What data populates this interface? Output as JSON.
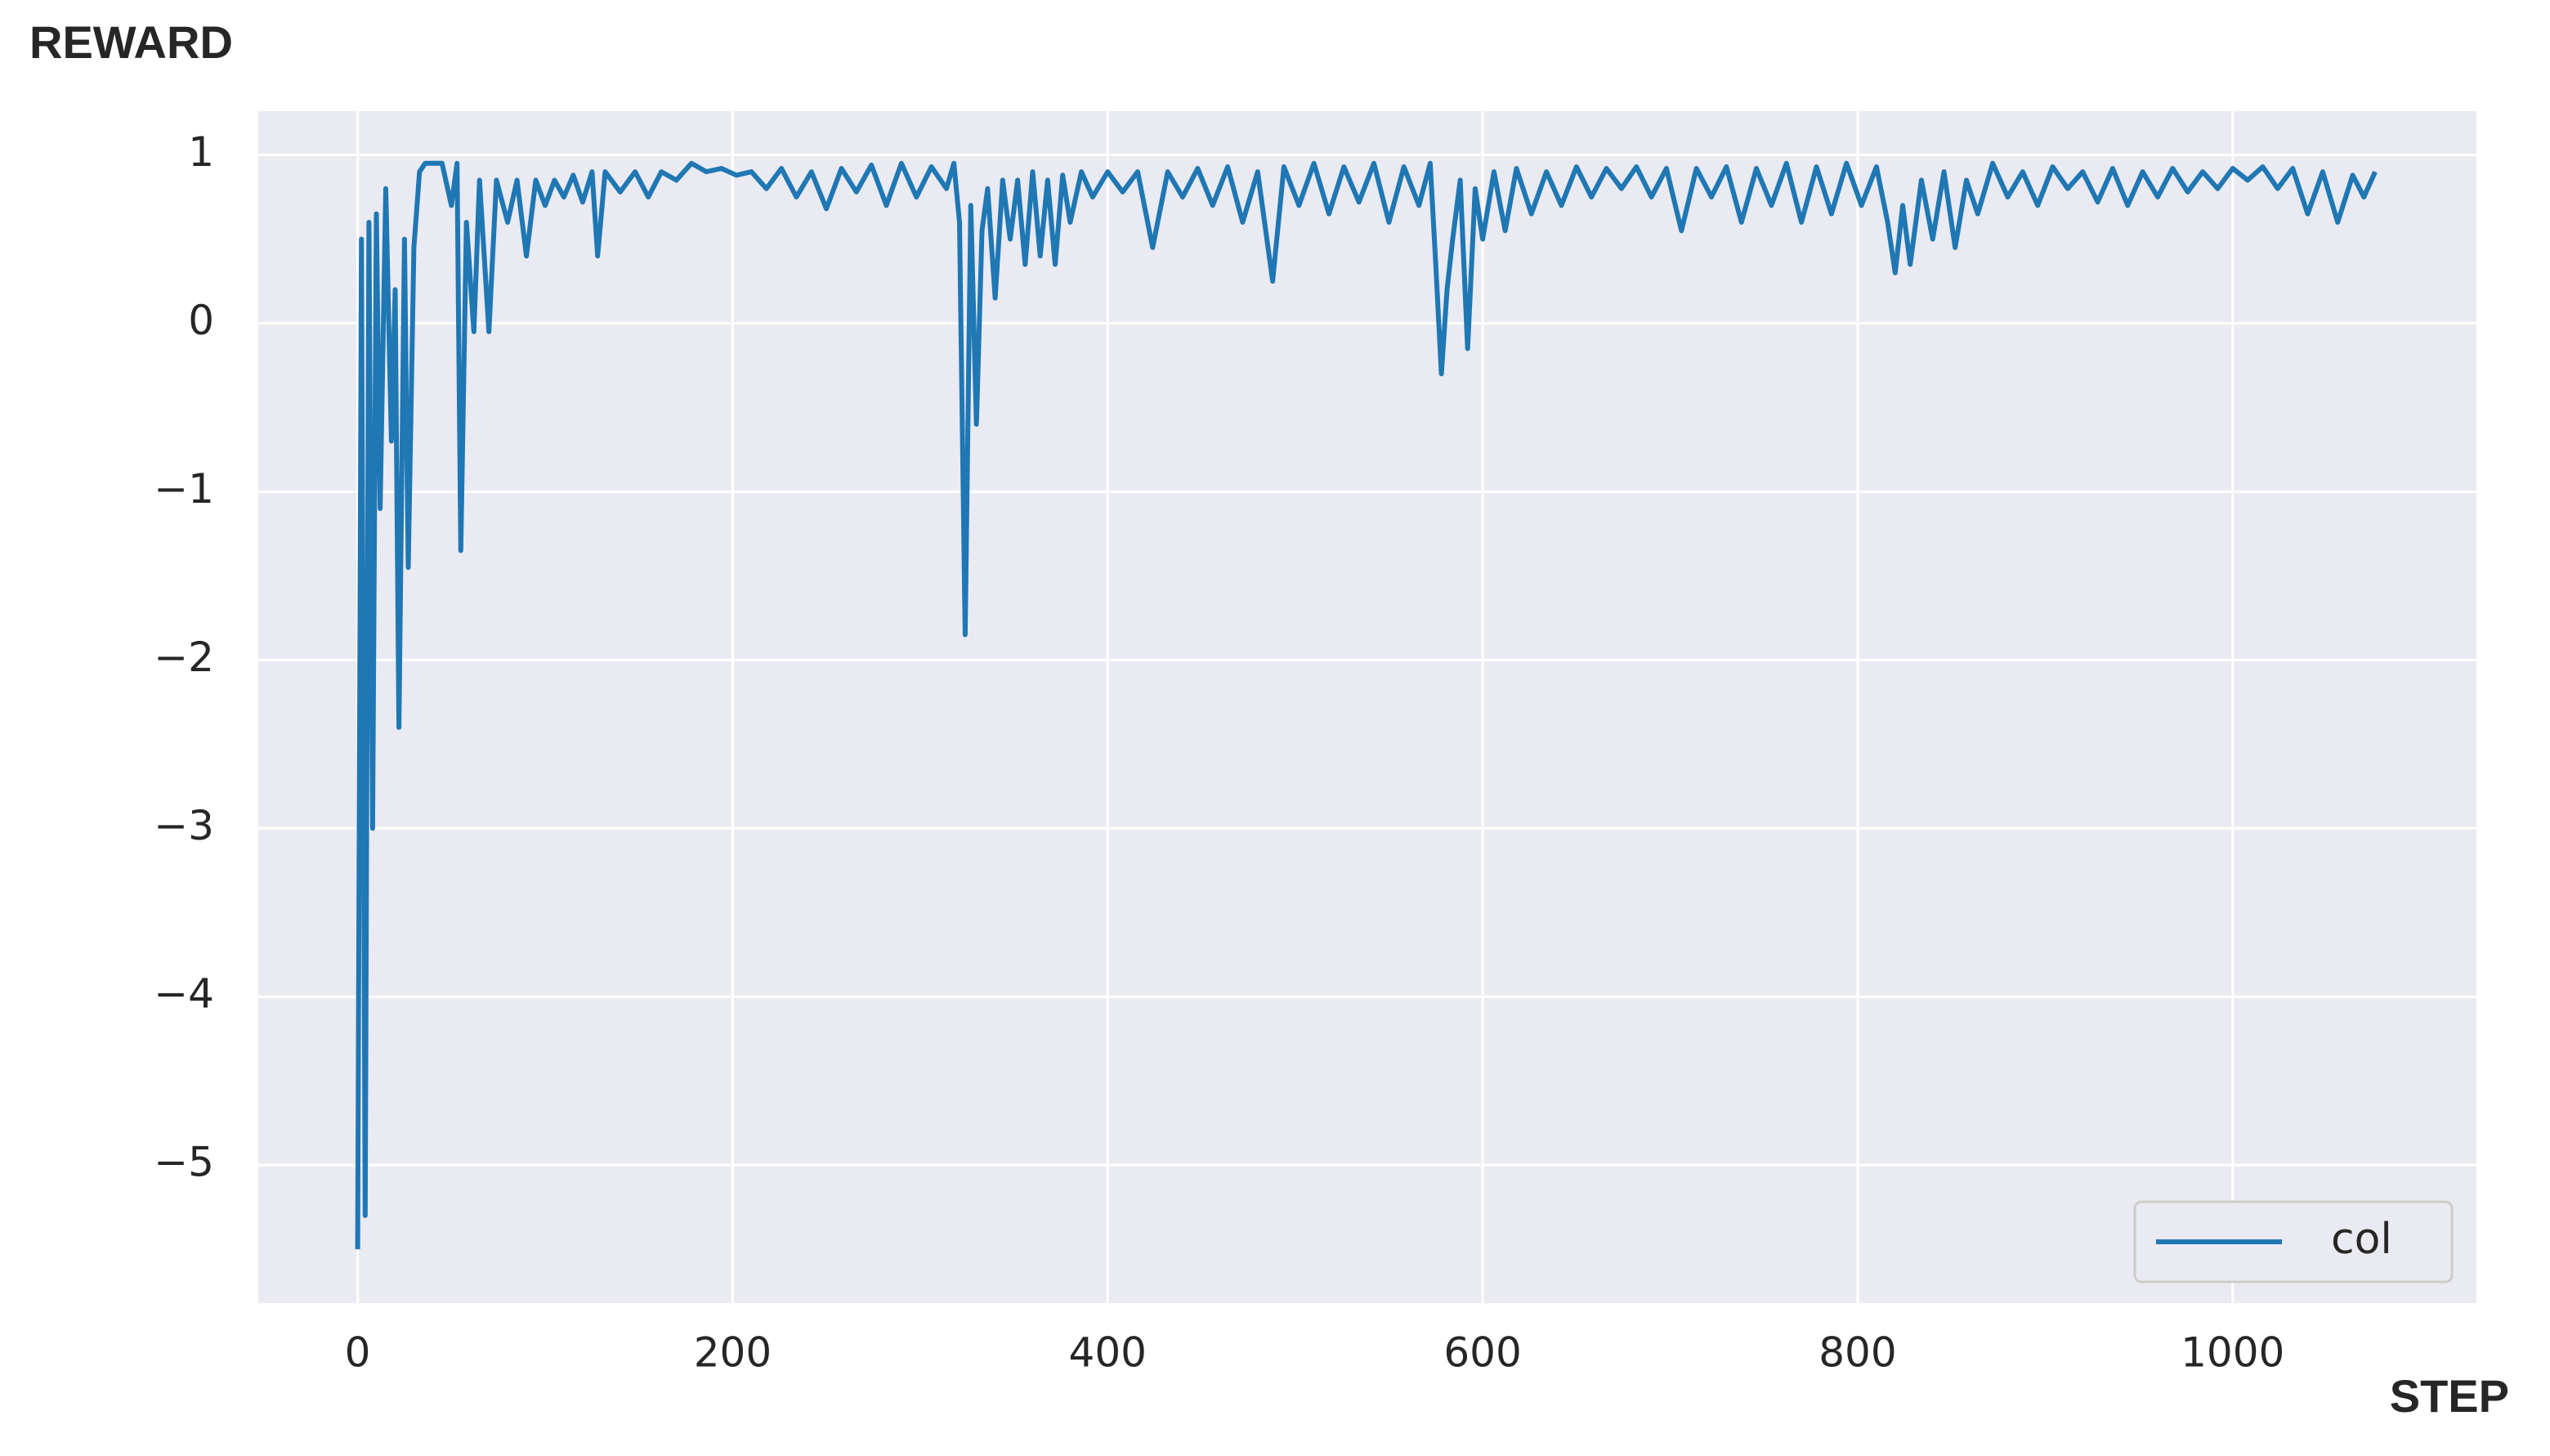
{
  "chart_data": {
    "type": "line",
    "y_label": "REWARD",
    "x_label": "STEP",
    "x": [
      0,
      2,
      4,
      6,
      8,
      10,
      12,
      15,
      18,
      20,
      22,
      25,
      27,
      30,
      33,
      36,
      40,
      45,
      50,
      53,
      55,
      58,
      62,
      65,
      70,
      74,
      80,
      85,
      90,
      95,
      100,
      105,
      110,
      115,
      120,
      125,
      128,
      132,
      140,
      148,
      155,
      162,
      170,
      178,
      186,
      194,
      202,
      210,
      218,
      226,
      234,
      242,
      250,
      258,
      266,
      274,
      282,
      290,
      298,
      306,
      314,
      318,
      321,
      324,
      327,
      330,
      333,
      336,
      340,
      344,
      348,
      352,
      356,
      360,
      364,
      368,
      372,
      376,
      380,
      386,
      392,
      400,
      408,
      416,
      424,
      432,
      440,
      448,
      456,
      464,
      472,
      480,
      488,
      494,
      502,
      510,
      518,
      526,
      534,
      542,
      550,
      558,
      566,
      572,
      575,
      578,
      581,
      584,
      588,
      592,
      596,
      600,
      606,
      612,
      618,
      626,
      634,
      642,
      650,
      658,
      666,
      674,
      682,
      690,
      698,
      706,
      714,
      722,
      730,
      738,
      746,
      754,
      762,
      770,
      778,
      786,
      794,
      802,
      810,
      816,
      820,
      824,
      828,
      834,
      840,
      846,
      852,
      858,
      864,
      872,
      880,
      888,
      896,
      904,
      912,
      920,
      928,
      936,
      944,
      952,
      960,
      968,
      976,
      984,
      992,
      1000,
      1008,
      1016,
      1024,
      1032,
      1040,
      1048,
      1056,
      1064,
      1070,
      1076
    ],
    "series": [
      {
        "name": "col",
        "color": "#1f77b4",
        "values": [
          -5.5,
          0.5,
          -5.3,
          0.6,
          -3.0,
          0.65,
          -1.1,
          0.8,
          -0.7,
          0.2,
          -2.4,
          0.5,
          -1.45,
          0.45,
          0.9,
          0.95,
          0.95,
          0.95,
          0.7,
          0.95,
          -1.35,
          0.6,
          -0.05,
          0.85,
          -0.05,
          0.85,
          0.6,
          0.85,
          0.4,
          0.85,
          0.7,
          0.85,
          0.75,
          0.88,
          0.72,
          0.9,
          0.4,
          0.9,
          0.78,
          0.9,
          0.75,
          0.9,
          0.85,
          0.95,
          0.9,
          0.92,
          0.88,
          0.9,
          0.8,
          0.92,
          0.75,
          0.9,
          0.68,
          0.92,
          0.78,
          0.94,
          0.7,
          0.95,
          0.75,
          0.93,
          0.8,
          0.95,
          0.6,
          -1.85,
          0.7,
          -0.6,
          0.55,
          0.8,
          0.15,
          0.85,
          0.5,
          0.85,
          0.35,
          0.9,
          0.4,
          0.85,
          0.35,
          0.88,
          0.6,
          0.9,
          0.75,
          0.9,
          0.78,
          0.9,
          0.45,
          0.9,
          0.75,
          0.92,
          0.7,
          0.93,
          0.6,
          0.9,
          0.25,
          0.93,
          0.7,
          0.95,
          0.65,
          0.93,
          0.72,
          0.95,
          0.6,
          0.93,
          0.7,
          0.95,
          0.35,
          -0.3,
          0.2,
          0.5,
          0.85,
          -0.15,
          0.8,
          0.5,
          0.9,
          0.55,
          0.92,
          0.65,
          0.9,
          0.7,
          0.93,
          0.75,
          0.92,
          0.8,
          0.93,
          0.75,
          0.92,
          0.55,
          0.92,
          0.75,
          0.93,
          0.6,
          0.92,
          0.7,
          0.95,
          0.6,
          0.93,
          0.65,
          0.95,
          0.7,
          0.93,
          0.6,
          0.3,
          0.7,
          0.35,
          0.85,
          0.5,
          0.9,
          0.45,
          0.85,
          0.65,
          0.95,
          0.75,
          0.9,
          0.7,
          0.93,
          0.8,
          0.9,
          0.72,
          0.92,
          0.7,
          0.9,
          0.75,
          0.92,
          0.78,
          0.9,
          0.8,
          0.92,
          0.85,
          0.93,
          0.8,
          0.92,
          0.65,
          0.9,
          0.6,
          0.88,
          0.75,
          0.9
        ]
      }
    ],
    "xlim": [
      -53,
      1130
    ],
    "ylim": [
      -5.82,
      1.26
    ],
    "xticks": [
      0,
      200,
      400,
      600,
      800,
      1000
    ],
    "yticks": [
      {
        "value": -5,
        "label": "−5"
      },
      {
        "value": -4,
        "label": "−4"
      },
      {
        "value": -3,
        "label": "−3"
      },
      {
        "value": -2,
        "label": "−2"
      },
      {
        "value": -1,
        "label": "−1"
      },
      0,
      1
    ],
    "grid": true,
    "legend": "lower right"
  }
}
